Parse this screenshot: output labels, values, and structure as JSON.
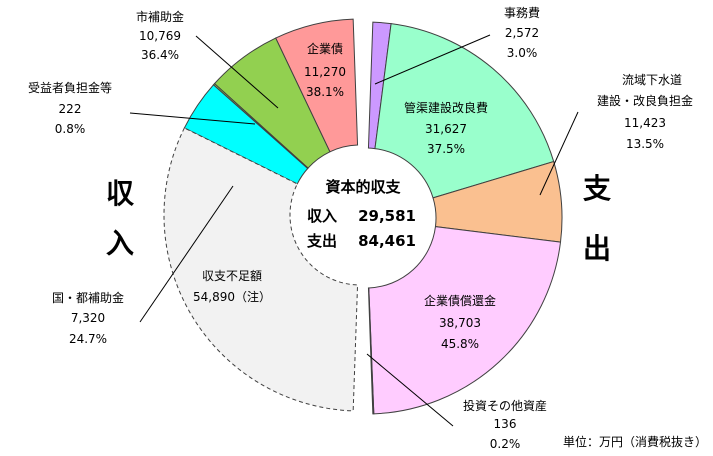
{
  "chart_data": {
    "type": "pie",
    "center": {
      "title": "資本的収支",
      "income_label": "収入",
      "income_value": "29,581",
      "expense_label": "支出",
      "expense_value": "84,461"
    },
    "side_labels": {
      "income_1": "収",
      "income_2": "入",
      "expense_1": "支",
      "expense_2": "出"
    },
    "unit": "単位：万円（消費税抜き）",
    "income": [
      {
        "name": "企業債",
        "value": 11270,
        "value_text": "11,270",
        "percent": "38.1%",
        "color": "#ff9999",
        "dashed": false
      },
      {
        "name": "市補助金",
        "value": 10769,
        "value_text": "10,769",
        "percent": "36.4%",
        "color": "#92d050",
        "dashed": false
      },
      {
        "name": "受益者負担金等",
        "value": 222,
        "value_text": "222",
        "percent": "0.8%",
        "color": "#92d050",
        "dashed": false
      },
      {
        "name": "国・都補助金",
        "value": 7320,
        "value_text": "7,320",
        "percent": "24.7%",
        "color": "#00ffff",
        "dashed": false
      },
      {
        "name": "収支不足額",
        "value": 54890,
        "value_text": "54,890（注）",
        "percent": "",
        "color": "#f2f2f2",
        "dashed": true
      }
    ],
    "expense": [
      {
        "name": "事務費",
        "value": 2572,
        "value_text": "2,572",
        "percent": "3.0%",
        "color": "#cc99ff"
      },
      {
        "name": "管渠建設改良費",
        "value": 31627,
        "value_text": "31,627",
        "percent": "37.5%",
        "color": "#99ffcc"
      },
      {
        "name": "流域下水道建設・改良負担金",
        "value": 11423,
        "value_text": "11,423",
        "percent": "13.5%",
        "color": "#fac090"
      },
      {
        "name": "企業債償還金",
        "value": 38703,
        "value_text": "38,703",
        "percent": "45.8%",
        "color": "#ffccff"
      },
      {
        "name": "投資その他資産",
        "value": 136,
        "value_text": "136",
        "percent": "0.2%",
        "color": "#ffccff"
      }
    ]
  }
}
